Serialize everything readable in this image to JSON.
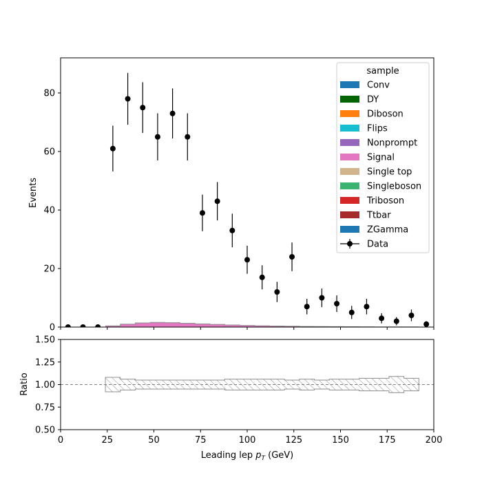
{
  "chart_data": {
    "type": "histogram-ratio",
    "xlabel_prefix": "Leading lep ",
    "xlabel_var": "p",
    "xlabel_sub": "T",
    "xlabel_unit": " (GeV)",
    "ylabel": "Events",
    "ratio_ylabel": "Ratio",
    "xlim": [
      0,
      200
    ],
    "ylim": [
      0,
      92
    ],
    "ratio_ylim": [
      0.5,
      1.5
    ],
    "x_ticks": [
      0,
      25,
      50,
      75,
      100,
      125,
      150,
      175,
      200
    ],
    "y_ticks": [
      0,
      20,
      40,
      60,
      80
    ],
    "ratio_ticks": [
      "0.50",
      "0.75",
      "1.00",
      "1.25",
      "1.50"
    ],
    "legend": {
      "title": "sample",
      "entries": [
        {
          "name": "Conv",
          "color": "#1f77b4"
        },
        {
          "name": "DY",
          "color": "#006400"
        },
        {
          "name": "Diboson",
          "color": "#ff7f0e"
        },
        {
          "name": "Flips",
          "color": "#17becf"
        },
        {
          "name": "Nonprompt",
          "color": "#9467bd"
        },
        {
          "name": "Signal",
          "color": "#e377c2"
        },
        {
          "name": "Single top",
          "color": "#d2b48c"
        },
        {
          "name": "Singleboson",
          "color": "#3cb371"
        },
        {
          "name": "Triboson",
          "color": "#d62728"
        },
        {
          "name": "Ttbar",
          "color": "#a52a2a"
        },
        {
          "name": "ZGamma",
          "color": "#1f77b4"
        }
      ],
      "data_label": "Data",
      "placement": "top-right"
    },
    "bin_edges": [
      24,
      32,
      40,
      48,
      56,
      64,
      72,
      80,
      88,
      96,
      104,
      112,
      120,
      128,
      136,
      144,
      152,
      160,
      168,
      176,
      184,
      192
    ],
    "stack_total": [
      0.4,
      1.0,
      1.4,
      1.6,
      1.5,
      1.3,
      1.1,
      0.9,
      0.7,
      0.55,
      0.45,
      0.35,
      0.28,
      0.22,
      0.18,
      0.14,
      0.11,
      0.09,
      0.07,
      0.06,
      0.05
    ],
    "signal_color": "#e377c2",
    "data_points": {
      "x": [
        4,
        12,
        20,
        28,
        36,
        44,
        52,
        60,
        68,
        76,
        84,
        92,
        100,
        108,
        116,
        124,
        132,
        140,
        148,
        156,
        164,
        172,
        180,
        188,
        196
      ],
      "y": [
        0,
        0,
        0,
        61,
        78,
        75,
        65,
        73,
        65,
        39,
        43,
        33,
        23,
        17,
        12,
        24,
        7,
        10,
        8,
        5,
        7,
        3,
        2,
        4,
        1
      ]
    },
    "ratio_uncertainty": {
      "lo": [
        0.92,
        0.94,
        0.95,
        0.95,
        0.95,
        0.95,
        0.95,
        0.95,
        0.94,
        0.94,
        0.94,
        0.94,
        0.95,
        0.94,
        0.95,
        0.94,
        0.94,
        0.93,
        0.93,
        0.91,
        0.93
      ],
      "hi": [
        1.08,
        1.06,
        1.05,
        1.05,
        1.05,
        1.05,
        1.05,
        1.05,
        1.06,
        1.06,
        1.06,
        1.06,
        1.05,
        1.06,
        1.05,
        1.06,
        1.06,
        1.07,
        1.07,
        1.09,
        1.07
      ]
    },
    "ratio_reference": 1.0
  }
}
